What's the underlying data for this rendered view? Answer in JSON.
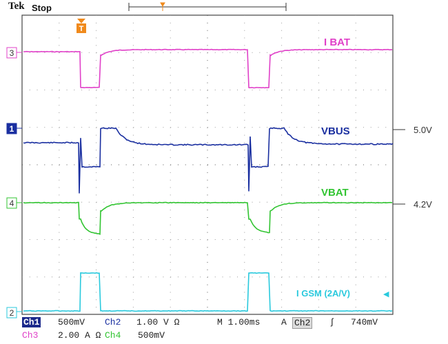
{
  "header": {
    "brand": "Tek",
    "status": "Stop"
  },
  "traces": {
    "ch3": {
      "label": "I BAT",
      "color": "#e040c8",
      "marker": "3"
    },
    "ch1": {
      "label": "VBUS",
      "color": "#1a2fa0",
      "marker": "1",
      "level": "5.0V"
    },
    "ch4": {
      "label": "VBAT",
      "color": "#31c431",
      "marker": "4",
      "level": "4.2V"
    },
    "ch2": {
      "label": "I GSM (2A/V)",
      "color": "#29c9dd",
      "marker": "2"
    }
  },
  "readout": {
    "row1": {
      "ch1_tag": "Ch1",
      "ch1_scale": "500mV",
      "ch2_tag": "Ch2",
      "ch2_scale": "1.00 V Ω",
      "timebase": "M 1.00ms",
      "trig_tag": "A",
      "trig_src": "Ch2",
      "trig_level": "740mV"
    },
    "row2": {
      "ch3_tag": "Ch3",
      "ch3_scale": "2.00 A Ω",
      "ch4_tag": "Ch4",
      "ch4_scale": "500mV"
    }
  },
  "colors": {
    "grid": "#888888",
    "frame": "#444444",
    "trigger_marker": "#f08a1c"
  }
}
